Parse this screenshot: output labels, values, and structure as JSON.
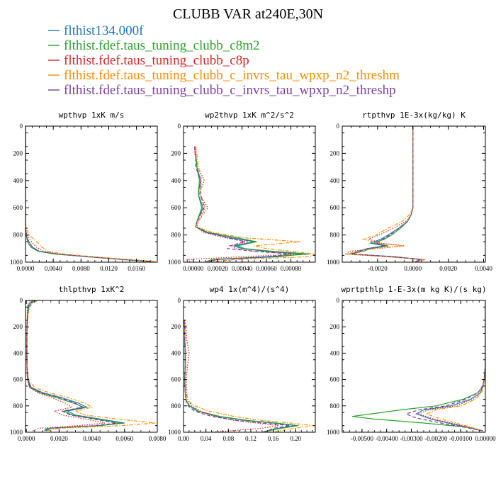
{
  "figure": {
    "title": "CLUBB VAR at240E,30N"
  },
  "legend": [
    {
      "label": "flthist134.000f",
      "color": "#1f77b4",
      "dash": "solid"
    },
    {
      "label": "flthist.fdef.taus_tuning_clubb_c8m2",
      "color": "#2ca02c",
      "dash": "solid"
    },
    {
      "label": "flthist.fdef.taus_tuning_clubb_c8p",
      "color": "#d62728",
      "dash": "dot"
    },
    {
      "label": "flthist.fdef.taus_tuning_clubb_c_invrs_tau_wpxp_n2_threshm",
      "color": "#ff8c00",
      "dash": "dashdot"
    },
    {
      "label": "flthist.fdef.taus_tuning_clubb_c_invrs_tau_wpxp_n2_threshp",
      "color": "#7b3f9e",
      "dash": "dash"
    }
  ],
  "chart_data": [
    {
      "type": "line",
      "title": "wpthvp  1xK m/s",
      "ylim": [
        1000,
        0
      ],
      "yticks": [
        0,
        200,
        400,
        600,
        800,
        1000
      ],
      "xlim": [
        0,
        0.019
      ],
      "xticks": [
        0,
        0.004,
        0.008,
        0.012,
        0.016
      ],
      "xtick_labels": [
        "0.0000",
        "0.0040",
        "0.0080",
        "0.0120",
        "0.0160"
      ],
      "y": [
        0,
        100,
        200,
        300,
        400,
        500,
        600,
        700,
        750,
        800,
        830,
        860,
        890,
        920,
        940,
        960,
        980,
        995
      ],
      "series": [
        {
          "x": [
            0,
            0,
            0,
            0,
            0,
            0,
            0,
            0,
            1e-05,
            0.0001,
            0.0003,
            0.0006,
            0.001,
            0.002,
            0.0045,
            0.009,
            0.014,
            0.018
          ]
        },
        {
          "x": [
            0,
            0,
            0,
            0,
            0,
            0,
            0,
            0,
            1e-05,
            0.0001,
            0.0002,
            0.0004,
            0.0008,
            0.0018,
            0.0042,
            0.0088,
            0.0138,
            0.0178
          ]
        },
        {
          "x": [
            0,
            0,
            0,
            0,
            0,
            0,
            0,
            0,
            2e-05,
            0.0002,
            0.0006,
            0.001,
            0.0016,
            0.0026,
            0.005,
            0.0095,
            0.0145,
            0.0185
          ]
        },
        {
          "x": [
            0,
            0,
            0,
            0,
            0,
            0,
            0,
            1e-05,
            0.0001,
            0.0005,
            0.0012,
            0.0018,
            0.0024,
            0.0032,
            0.0055,
            0.0098,
            0.0148,
            0.0188
          ]
        },
        {
          "x": [
            0,
            0,
            0,
            0,
            0,
            0,
            0,
            0,
            1e-05,
            0.0001,
            0.0003,
            0.0006,
            0.001,
            0.002,
            0.0045,
            0.009,
            0.014,
            0.0182
          ]
        }
      ]
    },
    {
      "type": "line",
      "title": "wp2thvp  1xK m^2/s^2",
      "ylim": [
        1000,
        0
      ],
      "yticks": [
        0,
        200,
        400,
        600,
        800,
        1000
      ],
      "xlim": [
        -8e-05,
        0.001
      ],
      "xticks": [
        0,
        0.0002,
        0.0004,
        0.0006,
        0.0008
      ],
      "xtick_labels": [
        "0.00000",
        "0.00020",
        "0.00040",
        "0.00060",
        "0.00080"
      ],
      "y": [
        150,
        200,
        300,
        400,
        500,
        600,
        700,
        740,
        780,
        820,
        850,
        880,
        900,
        920,
        940,
        960,
        980,
        1000
      ],
      "series": [
        {
          "x": [
            1e-05,
            2e-05,
            3e-05,
            6e-05,
            4e-05,
            8e-05,
            3e-05,
            2e-05,
            0.0001,
            0.0003,
            0.0005,
            0.00033,
            0.0004,
            0.0006,
            0.0009,
            0.0007,
            0.0002,
            0.0001
          ]
        },
        {
          "x": [
            1e-05,
            2e-05,
            3e-05,
            5e-05,
            4e-05,
            7e-05,
            3e-05,
            2e-05,
            0.00012,
            0.00035,
            0.00052,
            0.00036,
            0.00042,
            0.00065,
            0.00095,
            0.0006,
            0.00015,
            0.0001
          ]
        },
        {
          "x": [
            1e-05,
            1e-05,
            4e-05,
            9e-05,
            5e-05,
            0.00012,
            4e-05,
            3e-05,
            8e-05,
            0.00025,
            0.00045,
            0.0003,
            0.00035,
            0.0005,
            0.00085,
            0.0004,
            -5e-05,
            -2e-05
          ]
        },
        {
          "x": [
            2e-05,
            3e-05,
            4e-05,
            7e-05,
            5e-05,
            0.0001,
            4e-05,
            3e-05,
            0.00015,
            0.0004,
            0.00088,
            0.0005,
            0.0006,
            0.0008,
            0.001,
            0.00095,
            0.00035,
            0.0001
          ]
        },
        {
          "x": [
            1e-05,
            2e-05,
            2e-05,
            6e-05,
            6e-05,
            9e-05,
            3e-05,
            2e-05,
            0.0001,
            0.00028,
            0.00042,
            0.0003,
            0.00028,
            0.0005,
            0.0008,
            0.0006,
            0.0002,
            0.0001
          ]
        }
      ]
    },
    {
      "type": "line",
      "title": "rtpthvp  1E-3x(kg/kg) K",
      "ylim": [
        1000,
        0
      ],
      "yticks": [
        0,
        200,
        400,
        600,
        800,
        1000
      ],
      "xlim": [
        -0.004,
        0.0041
      ],
      "xticks": [
        -0.002,
        0,
        0.002,
        0.004
      ],
      "xtick_labels": [
        "-0.0020",
        "0.0000",
        "0.0020",
        "0.0040"
      ],
      "y": [
        0,
        200,
        400,
        600,
        650,
        700,
        750,
        800,
        830,
        860,
        880,
        900,
        920,
        940,
        960,
        980,
        1000
      ],
      "series": [
        {
          "x": [
            0,
            0,
            0,
            0,
            -0.0001,
            -0.0003,
            -0.0008,
            -0.0014,
            -0.0018,
            -0.0024,
            -0.0016,
            -0.0026,
            -0.003,
            -0.0035,
            -0.001,
            0.0005,
            0.0001
          ]
        },
        {
          "x": [
            0,
            0,
            0,
            0,
            -0.0001,
            -0.0003,
            -0.0007,
            -0.0012,
            -0.0016,
            -0.0022,
            -0.0014,
            -0.0024,
            -0.0028,
            -0.0036,
            -0.0012,
            0.0004,
            0.0001
          ]
        },
        {
          "x": [
            0,
            0,
            0,
            0,
            -0.0001,
            -0.0004,
            -0.0011,
            -0.0019,
            -0.0025,
            -0.0018,
            -0.0005,
            -0.002,
            -0.0036,
            -0.0038,
            -0.0015,
            0.0007,
            0.0002
          ]
        },
        {
          "x": [
            0,
            0,
            0,
            0,
            -0.0002,
            -0.0006,
            -0.0014,
            -0.0021,
            -0.0028,
            -0.002,
            -0.0006,
            -0.0022,
            -0.0032,
            -0.0037,
            -0.0014,
            0.0006,
            0.0001
          ]
        },
        {
          "x": [
            0,
            0,
            0,
            0,
            -0.0001,
            -0.0003,
            -0.0008,
            -0.0013,
            -0.0017,
            -0.0021,
            -0.0015,
            -0.0025,
            -0.0031,
            -0.0034,
            -0.0011,
            0.0004,
            0.0001
          ]
        }
      ]
    },
    {
      "type": "line",
      "title": "thlpthvp  1xK^2",
      "ylim": [
        1000,
        0
      ],
      "yticks": [
        0,
        200,
        400,
        600,
        800,
        1000
      ],
      "xlim": [
        -5e-05,
        0.008
      ],
      "xticks": [
        0,
        0.002,
        0.004,
        0.006,
        0.008
      ],
      "xtick_labels": [
        "0.0000",
        "0.0020",
        "0.0040",
        "0.0060",
        "0.0080"
      ],
      "y": [
        0,
        20,
        50,
        100,
        200,
        300,
        400,
        500,
        600,
        660,
        700,
        740,
        780,
        810,
        840,
        870,
        900,
        930,
        950,
        970,
        990
      ],
      "series": [
        {
          "x": [
            0.0006,
            0.0003,
            0.00015,
            0.0001,
            5e-05,
            4e-05,
            4e-05,
            5e-05,
            0.0001,
            0.0003,
            0.001,
            0.0022,
            0.0032,
            0.0037,
            0.0025,
            0.003,
            0.0045,
            0.006,
            0.0045,
            0.0015,
            0.0012
          ]
        },
        {
          "x": [
            0.0005,
            0.0002,
            0.0001,
            8e-05,
            4e-05,
            3e-05,
            3e-05,
            4e-05,
            8e-05,
            0.0002,
            0.0008,
            0.0019,
            0.0029,
            0.0035,
            0.0023,
            0.0028,
            0.0043,
            0.0058,
            0.0044,
            0.0014,
            0.0011
          ]
        },
        {
          "x": [
            0.0002,
            0.0001,
            6e-05,
            5e-05,
            3e-05,
            2e-05,
            2e-05,
            3e-05,
            6e-05,
            0.0002,
            0.0007,
            0.0016,
            0.0024,
            0.0028,
            0.0017,
            0.0022,
            0.0036,
            0.0048,
            0.0032,
            0.0008,
            0.0004
          ]
        },
        {
          "x": [
            0.0007,
            0.0004,
            0.0002,
            0.00012,
            6e-05,
            5e-05,
            5e-05,
            6e-05,
            0.00015,
            0.0005,
            0.0014,
            0.0026,
            0.0036,
            0.004,
            0.003,
            0.0036,
            0.0055,
            0.0079,
            0.0058,
            0.002,
            0.0013
          ]
        },
        {
          "x": [
            0.0004,
            0.0002,
            0.0001,
            7e-05,
            4e-05,
            3e-05,
            3e-05,
            4e-05,
            8e-05,
            0.00025,
            0.0009,
            0.0021,
            0.003,
            0.0034,
            0.0022,
            0.0027,
            0.0041,
            0.0055,
            0.0042,
            0.0013,
            0.001
          ]
        }
      ]
    },
    {
      "type": "line",
      "title": "wp4  1x(m^4)/(s^4)",
      "ylim": [
        1000,
        0
      ],
      "yticks": [
        0,
        200,
        400,
        600,
        800,
        1000
      ],
      "xlim": [
        0,
        0.235
      ],
      "xticks": [
        0,
        0.04,
        0.08,
        0.12,
        0.16,
        0.2
      ],
      "xtick_labels": [
        "0.00",
        "0.04",
        "0.08",
        "0.12",
        "0.16",
        "0.20"
      ],
      "y": [
        150,
        200,
        300,
        400,
        500,
        600,
        700,
        760,
        800,
        840,
        880,
        910,
        930,
        950,
        970,
        990,
        1000
      ],
      "series": [
        {
          "x": [
            0.001,
            0.002,
            0.002,
            0.003,
            0.003,
            0.002,
            0.003,
            0.005,
            0.01,
            0.025,
            0.06,
            0.11,
            0.16,
            0.2,
            0.17,
            0.15,
            0.14
          ]
        },
        {
          "x": [
            0.001,
            0.002,
            0.002,
            0.003,
            0.003,
            0.002,
            0.003,
            0.005,
            0.011,
            0.027,
            0.065,
            0.115,
            0.165,
            0.205,
            0.175,
            0.15,
            0.14
          ]
        },
        {
          "x": [
            0.002,
            0.004,
            0.006,
            0.01,
            0.007,
            0.005,
            0.006,
            0.008,
            0.015,
            0.03,
            0.055,
            0.09,
            0.13,
            0.17,
            0.14,
            0.08,
            0.05
          ]
        },
        {
          "x": [
            0.001,
            0.002,
            0.003,
            0.004,
            0.004,
            0.003,
            0.004,
            0.008,
            0.02,
            0.045,
            0.09,
            0.14,
            0.19,
            0.232,
            0.2,
            0.17,
            0.15
          ]
        },
        {
          "x": [
            0.001,
            0.002,
            0.002,
            0.003,
            0.003,
            0.002,
            0.003,
            0.004,
            0.008,
            0.02,
            0.05,
            0.095,
            0.14,
            0.19,
            0.16,
            0.15,
            0.14
          ]
        }
      ]
    },
    {
      "type": "line",
      "title": "wprtpthlp  1-E-3x(m kg K)/(s kg)",
      "ylim": [
        1000,
        0
      ],
      "yticks": [
        0,
        200,
        400,
        600,
        800,
        1000
      ],
      "xlim": [
        -0.0058,
        0
      ],
      "xticks": [
        -0.005,
        -0.004,
        -0.003,
        -0.002,
        -0.001,
        0
      ],
      "xtick_labels": [
        "-0.00500",
        "-0.00400",
        "-0.00300",
        "-0.00200",
        "-0.00100",
        "0.00000"
      ],
      "y": [
        0,
        100,
        200,
        300,
        400,
        500,
        600,
        650,
        700,
        750,
        800,
        830,
        860,
        880,
        900,
        930,
        960,
        990
      ],
      "series": [
        {
          "x": [
            0,
            0,
            0,
            0,
            0,
            -1e-05,
            -5e-05,
            -0.0001,
            -0.0002,
            -0.0006,
            -0.0014,
            -0.0025,
            -0.0028,
            -0.0025,
            -0.0022,
            -0.0015,
            -0.0008,
            -0.0001
          ]
        },
        {
          "x": [
            0,
            0,
            0,
            0,
            0,
            -1e-05,
            -4e-05,
            -0.0001,
            -0.0003,
            -0.0009,
            -0.002,
            -0.0034,
            -0.0046,
            -0.0054,
            -0.0045,
            -0.0025,
            -0.0008,
            -0.0001
          ]
        },
        {
          "x": [
            0,
            0,
            0,
            0,
            0,
            -1e-05,
            -4e-05,
            -0.0001,
            -0.0002,
            -0.0005,
            -0.0012,
            -0.0023,
            -0.0027,
            -0.0024,
            -0.0021,
            -0.0014,
            -0.0007,
            -0.0001
          ]
        },
        {
          "x": [
            0,
            0,
            0,
            0,
            0,
            -1e-05,
            -3e-05,
            -8e-05,
            -0.00015,
            -0.0004,
            -0.001,
            -0.002,
            -0.0024,
            -0.0021,
            -0.0018,
            -0.0012,
            -0.0006,
            -0.0001
          ]
        },
        {
          "x": [
            0,
            0,
            0,
            0,
            0,
            -1e-05,
            -5e-05,
            -0.00012,
            -0.0003,
            -0.0008,
            -0.0016,
            -0.0027,
            -0.0032,
            -0.003,
            -0.0026,
            -0.0018,
            -0.0009,
            -0.0001
          ]
        }
      ]
    }
  ]
}
